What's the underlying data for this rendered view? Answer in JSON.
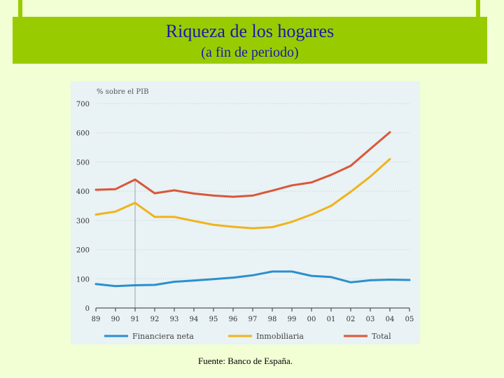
{
  "header": {
    "title": "Riqueza de los hogares",
    "subtitle": "(a fin de periodo)"
  },
  "footer": {
    "source": "Fuente: Banco de España."
  },
  "colors": {
    "background": "#f2ffd4",
    "banner": "#99cc00",
    "title": "#1a1aa8",
    "panel": "#e9f2f4"
  },
  "chart_data": {
    "type": "line",
    "title": "",
    "ylabel": "% sobre el PIB",
    "xlabel": "",
    "ylim": [
      0,
      700
    ],
    "yticks": [
      0,
      100,
      200,
      300,
      400,
      500,
      600,
      700
    ],
    "grid": true,
    "legend_position": "bottom",
    "x": [
      "89",
      "90",
      "91",
      "92",
      "93",
      "94",
      "95",
      "96",
      "97",
      "98",
      "99",
      "00",
      "01",
      "02",
      "03",
      "04",
      "05"
    ],
    "series": [
      {
        "name": "Financiera neta",
        "color": "#2a8fd0",
        "values": [
          82,
          75,
          78,
          79,
          90,
          94,
          99,
          104,
          112,
          125,
          125,
          110,
          106,
          88,
          95,
          97,
          96
        ]
      },
      {
        "name": "Inmobiliaria",
        "color": "#f0b31c",
        "values": [
          320,
          330,
          360,
          312,
          312,
          298,
          285,
          278,
          273,
          277,
          295,
          320,
          350,
          398,
          450,
          510,
          null
        ]
      },
      {
        "name": "Total",
        "color": "#d9573a",
        "values": [
          405,
          407,
          440,
          393,
          403,
          392,
          385,
          381,
          385,
          402,
          420,
          430,
          456,
          487,
          545,
          602,
          null
        ]
      }
    ]
  }
}
